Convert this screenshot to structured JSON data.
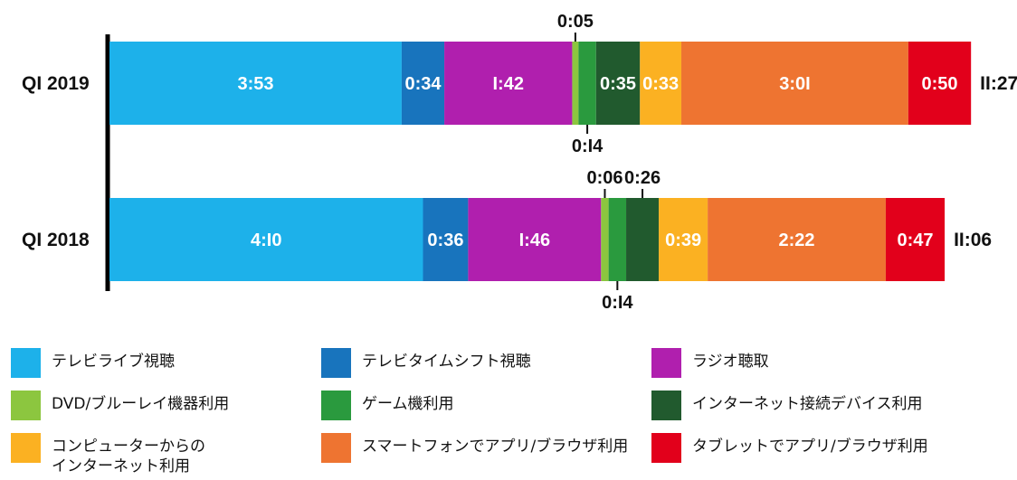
{
  "chart_data": {
    "type": "bar",
    "orientation": "horizontal",
    "stacked": true,
    "title": "",
    "xlabel": "",
    "ylabel": "",
    "grid": false,
    "legend_position": "bottom",
    "categories": [
      "QI 2019",
      "QI 2018"
    ],
    "totals": [
      "11:27",
      "11:06"
    ],
    "series": [
      {
        "name": "テレビライブ視聴",
        "color": "#1db1ea",
        "values": [
          "3:53",
          "4:10"
        ]
      },
      {
        "name": "テレビタイムシフト視聴",
        "color": "#1874bd",
        "values": [
          "0:34",
          "0:36"
        ]
      },
      {
        "name": "ラジオ聴取",
        "color": "#b01fae",
        "values": [
          "1:42",
          "1:46"
        ]
      },
      {
        "name": "DVD/ブルーレイ機器利用",
        "color": "#8cc63f",
        "values": [
          "0:05",
          "0:06"
        ]
      },
      {
        "name": "ゲーム機利用",
        "color": "#2a9a3e",
        "values": [
          "0:14",
          "0:14"
        ]
      },
      {
        "name": "インターネット接続デバイス利用",
        "color": "#215a2e",
        "values": [
          "0:35",
          "0:26"
        ]
      },
      {
        "name": "コンピューターからの\nインターネット利用",
        "color": "#fbb122",
        "values": [
          "0:33",
          "0:39"
        ]
      },
      {
        "name": "スマートフォンでアプリ/ブラウザ利用",
        "color": "#ee7431",
        "values": [
          "3:01",
          "2:22"
        ]
      },
      {
        "name": "タブレットでアプリ/ブラウザ利用",
        "color": "#e2001b",
        "values": [
          "0:50",
          "0:47"
        ]
      }
    ],
    "display_labels": {
      "QI 2019": [
        "3:53",
        "0:34",
        "I:42",
        "0:05",
        "0:I4",
        "0:35",
        "0:33",
        "3:0I",
        "0:50"
      ],
      "QI 2018": [
        "4:I0",
        "0:36",
        "I:46",
        "0:06",
        "0:I4",
        "0:26",
        "0:39",
        "2:22",
        "0:47"
      ]
    },
    "display_totals": [
      "II:27",
      "II:06"
    ]
  }
}
